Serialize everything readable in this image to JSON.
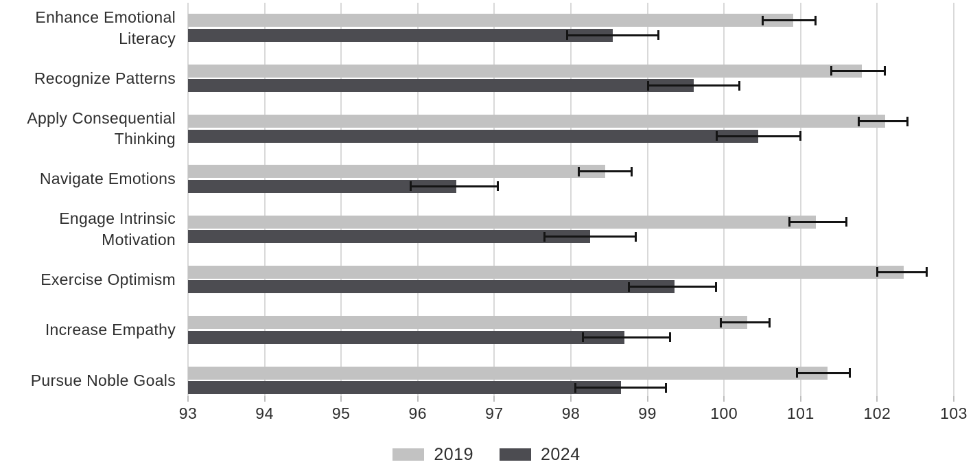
{
  "chart_data": {
    "type": "bar",
    "orientation": "horizontal",
    "title": "",
    "xlabel": "",
    "ylabel": "",
    "categories": [
      "Enhance Emotional Literacy",
      "Recognize Patterns",
      "Apply Consequential Thinking",
      "Navigate Emotions",
      "Engage Intrinsic Motivation",
      "Exercise Optimism",
      "Increase Empathy",
      "Pursue Noble Goals"
    ],
    "series": [
      {
        "name": "2019",
        "color": "#c2c2c2",
        "values": [
          100.9,
          101.8,
          102.1,
          98.45,
          101.2,
          102.35,
          100.3,
          101.35
        ],
        "error_low": [
          100.5,
          101.4,
          101.75,
          98.1,
          100.85,
          102.0,
          99.95,
          100.95
        ],
        "error_high": [
          101.2,
          102.1,
          102.4,
          98.8,
          101.6,
          102.65,
          100.6,
          101.65
        ]
      },
      {
        "name": "2024",
        "color": "#4c4c51",
        "values": [
          98.55,
          99.6,
          100.45,
          96.5,
          98.25,
          99.35,
          98.7,
          98.65
        ],
        "error_low": [
          97.95,
          99.0,
          99.9,
          95.9,
          97.65,
          98.75,
          98.15,
          98.05
        ],
        "error_high": [
          99.15,
          100.2,
          101.0,
          97.05,
          98.85,
          99.9,
          99.3,
          99.25
        ]
      }
    ],
    "xlim": [
      93,
      103
    ],
    "x_ticks": [
      93,
      94,
      95,
      96,
      97,
      98,
      99,
      100,
      101,
      102,
      103
    ],
    "grid": true,
    "gridline_color": "#d9d9d9",
    "error_bar_color": "#141414",
    "legend_position": "bottom"
  }
}
